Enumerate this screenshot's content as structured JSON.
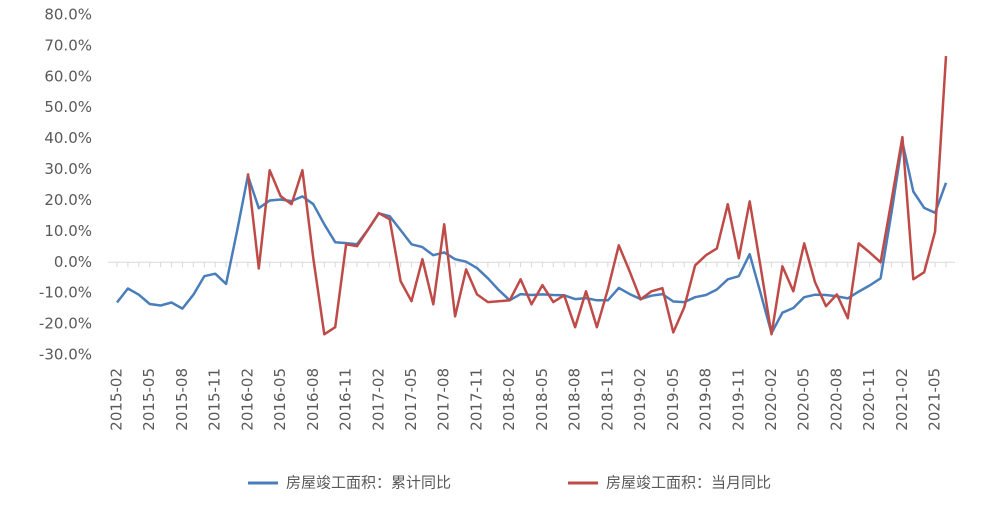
{
  "chart_data": {
    "type": "line",
    "categories": [
      "2015-02",
      null,
      null,
      "2015-05",
      null,
      null,
      "2015-08",
      null,
      null,
      "2015-11",
      null,
      null,
      "2016-02",
      null,
      null,
      "2016-05",
      null,
      null,
      "2016-08",
      null,
      null,
      "2016-11",
      null,
      null,
      "2017-02",
      null,
      null,
      "2017-05",
      null,
      null,
      "2017-08",
      null,
      null,
      "2017-11",
      null,
      null,
      "2018-02",
      null,
      null,
      "2018-05",
      null,
      null,
      "2018-08",
      null,
      null,
      "2018-11",
      null,
      null,
      "2019-02",
      null,
      null,
      "2019-05",
      null,
      null,
      "2019-08",
      null,
      null,
      "2019-11",
      null,
      null,
      "2020-02",
      null,
      null,
      "2020-05",
      null,
      null,
      "2020-08",
      null,
      null,
      "2020-11",
      null,
      null,
      "2021-02",
      null,
      null,
      "2021-05",
      null
    ],
    "series": [
      {
        "name": "房屋竣工面积：累计同比",
        "color": "#4a7ebb",
        "values": [
          -13,
          -8.5,
          -10.5,
          -13.5,
          -14,
          -13,
          -15,
          -10.5,
          -4.5,
          -3.7,
          -7,
          10,
          28,
          17.5,
          20,
          20.3,
          19.8,
          21.3,
          18.8,
          12.3,
          6.5,
          6.2,
          5.8,
          10.5,
          15.8,
          14.9,
          10.4,
          5.8,
          4.9,
          2.3,
          3.2,
          1,
          0.2,
          -1.9,
          -5.2,
          -9,
          -12.3,
          -10.3,
          -10.6,
          -10.4,
          -10.6,
          -10.7,
          -11.9,
          -11.6,
          -12.3,
          -12.3,
          -8.3,
          -10.3,
          -11.9,
          -10.8,
          -10.3,
          -12.7,
          -12.9,
          -11.3,
          -10.6,
          -8.8,
          -5.5,
          -4.5,
          2.6,
          -10,
          -22.9,
          -16.3,
          -14.8,
          -11.3,
          -10.5,
          -10.6,
          -11,
          -11.7,
          -9.5,
          -7.5,
          -5.2,
          16,
          38.9,
          22.9,
          17.6,
          16,
          25.7
        ]
      },
      {
        "name": "房屋竣工面积：当月同比",
        "color": "#be4b48",
        "values": [
          null,
          null,
          null,
          null,
          null,
          null,
          null,
          null,
          null,
          null,
          null,
          null,
          28.8,
          -2,
          29.8,
          21.4,
          18.8,
          29.8,
          1.3,
          -23.3,
          -21,
          5.8,
          5.2,
          10.5,
          15.9,
          13.9,
          -6.1,
          -12.6,
          1,
          -13.6,
          12.3,
          -17.5,
          -2.3,
          -10.4,
          -12.9,
          -12.6,
          -12.3,
          -5.5,
          -13.6,
          -7.4,
          -12.9,
          -10.7,
          -21,
          -9.4,
          -21,
          -8.7,
          5.5,
          -3,
          -12,
          -9.4,
          -8.4,
          -22.7,
          -14.6,
          -1,
          2.3,
          4.5,
          18.8,
          1.3,
          19.7,
          -1.5,
          -23.3,
          -1.3,
          -9.4,
          6.1,
          -6.5,
          -14.2,
          -10.4,
          -18.1,
          6.1,
          3.2,
          0,
          20,
          40.5,
          -5.5,
          -3.2,
          10,
          66.7
        ]
      }
    ],
    "ylim": [
      -30,
      80
    ],
    "yticks": [
      {
        "value": -30,
        "label": "-30.0%"
      },
      {
        "value": -20,
        "label": "-20.0%"
      },
      {
        "value": -10,
        "label": "-10.0%"
      },
      {
        "value": 0,
        "label": "0.0%"
      },
      {
        "value": 10,
        "label": "10.0%"
      },
      {
        "value": 20,
        "label": "20.0%"
      },
      {
        "value": 30,
        "label": "30.0%"
      },
      {
        "value": 40,
        "label": "40.0%"
      },
      {
        "value": 50,
        "label": "50.0%"
      },
      {
        "value": 60,
        "label": "60.0%"
      },
      {
        "value": 70,
        "label": "70.0%"
      },
      {
        "value": 80,
        "label": "80.0%"
      }
    ],
    "grid": false,
    "legend": "bottom"
  }
}
